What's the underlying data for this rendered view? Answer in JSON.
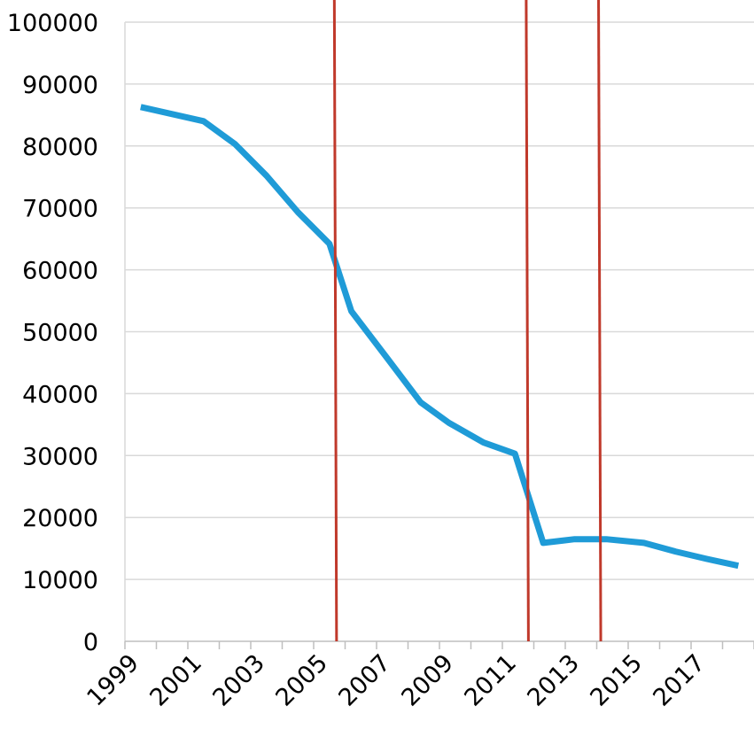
{
  "chart_data": {
    "type": "line",
    "title": "",
    "xlabel": "",
    "ylabel": "",
    "x": [
      1999.5,
      2001.5,
      2002.5,
      2003.5,
      2004.5,
      2005.5,
      2006.2,
      2007.3,
      2008.4,
      2009.3,
      2010.4,
      2011.4,
      2012.3,
      2013.3,
      2014.3,
      2015.5,
      2016.5,
      2017.5,
      2018.5
    ],
    "series": [
      {
        "color": "#1f9bd7",
        "values": [
          86300,
          84000,
          80300,
          75200,
          69300,
          64200,
          53300,
          46000,
          38600,
          35300,
          32100,
          30300,
          15900,
          16500,
          16500,
          15900,
          14500,
          13300,
          12200
        ]
      }
    ],
    "event_lines": {
      "color": "#c0392b",
      "years": [
        2005.7,
        2011.8,
        2014.1
      ]
    },
    "xlim": [
      1999,
      2019
    ],
    "ylim": [
      0,
      100000
    ],
    "x_ticks": [
      1999,
      2000,
      2001,
      2002,
      2003,
      2004,
      2005,
      2006,
      2007,
      2008,
      2009,
      2010,
      2011,
      2012,
      2013,
      2014,
      2015,
      2016,
      2017,
      2018,
      2019
    ],
    "x_tick_labels": [
      {
        "value": 1999,
        "label": "1999"
      },
      {
        "value": 2001,
        "label": "2001"
      },
      {
        "value": 2003,
        "label": "2003"
      },
      {
        "value": 2005,
        "label": "2005"
      },
      {
        "value": 2007,
        "label": "2007"
      },
      {
        "value": 2009,
        "label": "2009"
      },
      {
        "value": 2011,
        "label": "2011"
      },
      {
        "value": 2013,
        "label": "2013"
      },
      {
        "value": 2015,
        "label": "2015"
      },
      {
        "value": 2017,
        "label": "2017"
      }
    ],
    "y_ticks": [
      {
        "value": 0,
        "label": "0"
      },
      {
        "value": 10000,
        "label": "10000"
      },
      {
        "value": 20000,
        "label": "20000"
      },
      {
        "value": 30000,
        "label": "30000"
      },
      {
        "value": 40000,
        "label": "40000"
      },
      {
        "value": 50000,
        "label": "50000"
      },
      {
        "value": 60000,
        "label": "60000"
      },
      {
        "value": 70000,
        "label": "70000"
      },
      {
        "value": 80000,
        "label": "80000"
      },
      {
        "value": 90000,
        "label": "90000"
      },
      {
        "value": 100000,
        "label": "100000"
      }
    ],
    "grid": true,
    "legend": "none"
  }
}
